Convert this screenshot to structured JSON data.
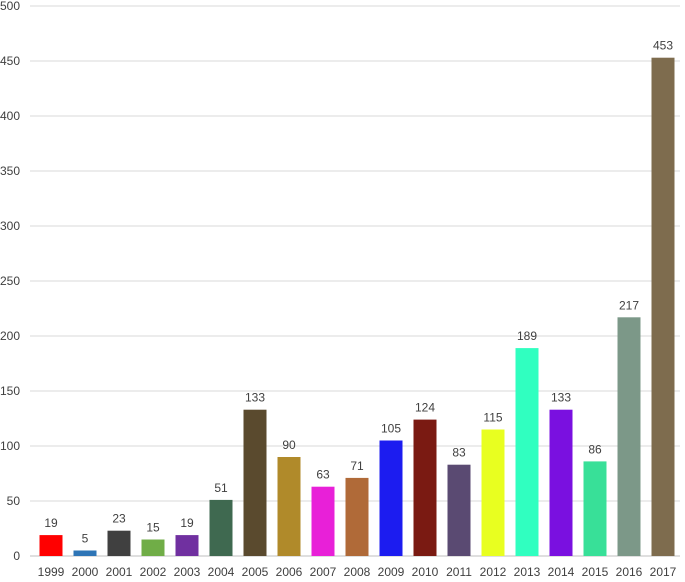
{
  "chart_data": {
    "type": "bar",
    "categories": [
      "1999",
      "2000",
      "2001",
      "2002",
      "2003",
      "2004",
      "2005",
      "2006",
      "2007",
      "2008",
      "2009",
      "2010",
      "2011",
      "2012",
      "2013",
      "2014",
      "2015",
      "2016",
      "2017"
    ],
    "values": [
      19,
      5,
      23,
      15,
      19,
      51,
      133,
      90,
      63,
      71,
      105,
      124,
      83,
      115,
      189,
      133,
      86,
      217,
      453
    ],
    "colors": [
      "#ff0000",
      "#2e75b6",
      "#404040",
      "#70ad47",
      "#7030a0",
      "#3f6950",
      "#5a4a2e",
      "#b08a2a",
      "#e820d8",
      "#b06a38",
      "#1c1cf0",
      "#7a1a12",
      "#5a4a72",
      "#e8ff20",
      "#30ffc0",
      "#7a10e0",
      "#38e098",
      "#7c9888",
      "#7e6c4e"
    ],
    "yticks": [
      0,
      50,
      100,
      150,
      200,
      250,
      300,
      350,
      400,
      450,
      500
    ],
    "ylim": [
      0,
      500
    ],
    "title": "",
    "xlabel": "",
    "ylabel": "",
    "grid": true,
    "legend": "none"
  }
}
